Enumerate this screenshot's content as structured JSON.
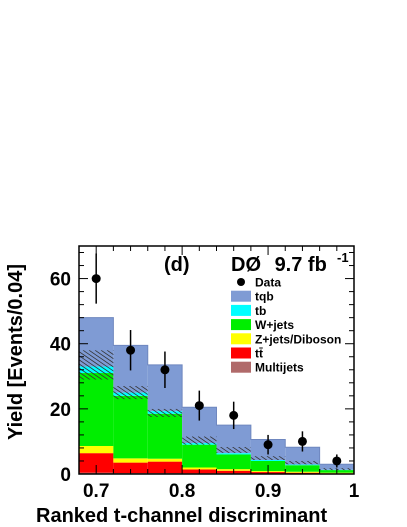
{
  "chart_data": {
    "type": "bar",
    "stacked": true,
    "panel_tag": "(d)",
    "experiment": "DØ",
    "luminosity": "9.7 fb",
    "luminosity_exponent": "-1",
    "xlabel": "Ranked t-channel discriminant",
    "ylabel": "Yield [Events/0.04]",
    "xlim": [
      0.68,
      1.0
    ],
    "ylim": [
      0,
      70
    ],
    "xticks": [
      "0.7",
      "0.8",
      "0.9",
      "1"
    ],
    "yticks": [
      "0",
      "20",
      "40",
      "60"
    ],
    "bin_edges": [
      0.68,
      0.72,
      0.76,
      0.8,
      0.84,
      0.88,
      0.92,
      0.96,
      1.0
    ],
    "series": [
      {
        "name": "Multijets",
        "color": "#b06a6a",
        "values": [
          0.4,
          0.3,
          0.3,
          0.2,
          0.2,
          0.1,
          0.1,
          0.1
        ]
      },
      {
        "name": "tt̄",
        "color": "#ff0000",
        "values": [
          6.0,
          3.2,
          3.5,
          1.2,
          0.8,
          0.5,
          0.3,
          0.1
        ]
      },
      {
        "name": "Z+jets/Diboson",
        "color": "#ffff00",
        "values": [
          2.2,
          1.3,
          0.9,
          0.6,
          0.5,
          0.3,
          0.3,
          0.2
        ]
      },
      {
        "name": "W+jets",
        "color": "#00ee00",
        "values": [
          22.4,
          19.2,
          13.8,
          7.0,
          4.5,
          3.1,
          2.0,
          0.8
        ]
      },
      {
        "name": "tb",
        "color": "#00ffff",
        "values": [
          2.0,
          1.0,
          0.8,
          0.5,
          0.4,
          0.3,
          0.2,
          0.1
        ]
      },
      {
        "name": "tqb",
        "color": "#7f9bd4",
        "values": [
          15.0,
          14.5,
          14.2,
          11.0,
          8.6,
          6.3,
          5.3,
          1.7
        ]
      }
    ],
    "data_points": {
      "name": "Data",
      "x": [
        0.7,
        0.74,
        0.78,
        0.82,
        0.86,
        0.9,
        0.94,
        0.98
      ],
      "y": [
        60,
        38,
        32,
        21,
        18,
        9,
        10,
        4
      ],
      "err_low": [
        7.7,
        6.2,
        5.6,
        4.6,
        4.2,
        3.0,
        3.1,
        2.0
      ],
      "err_high": [
        7.7,
        6.2,
        5.6,
        4.6,
        4.2,
        3.0,
        3.1,
        2.0
      ]
    },
    "uncertainty_band": {
      "low": [
        29.0,
        23.0,
        17.5,
        9.0,
        6.5,
        4.3,
        3.0,
        1.2
      ],
      "high": [
        38.0,
        27.0,
        20.0,
        11.5,
        8.3,
        5.5,
        4.0,
        1.8
      ]
    },
    "legend": [
      {
        "label": "Data",
        "marker": "dot",
        "color": "#000000"
      },
      {
        "label": "tqb",
        "marker": "box",
        "color": "#7f9bd4"
      },
      {
        "label": "tb",
        "marker": "box",
        "color": "#00ffff"
      },
      {
        "label": "W+jets",
        "marker": "box",
        "color": "#00ee00"
      },
      {
        "label": "Z+jets/Diboson",
        "marker": "box",
        "color": "#ffff00"
      },
      {
        "label": "tt̄",
        "marker": "box",
        "color": "#ff0000"
      },
      {
        "label": "Multijets",
        "marker": "box",
        "color": "#b06a6a"
      }
    ],
    "legend_placement": "top-right",
    "grid": false
  }
}
